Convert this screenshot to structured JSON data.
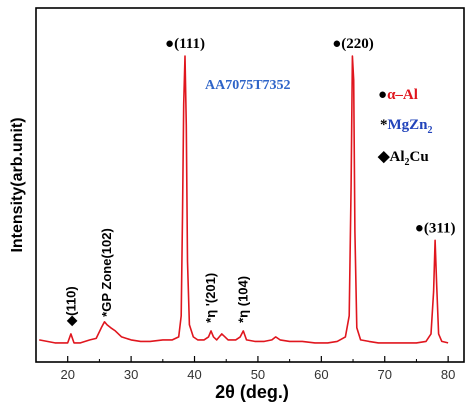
{
  "chart_data": {
    "type": "line",
    "xlabel": "2θ (deg.)",
    "ylabel": "Intensity(arb.unit)",
    "xlim": [
      15,
      82.5
    ],
    "ylim": [
      0,
      100
    ],
    "y_ticks_shown": false,
    "grid": false,
    "x_ticks": [
      20,
      30,
      40,
      50,
      60,
      70,
      80
    ],
    "x_tick_labels": [
      "20",
      "30",
      "40",
      "50",
      "60",
      "70",
      "80"
    ],
    "series": [
      {
        "color": "#e0161e",
        "x": [
          15.5,
          18,
          20.0,
          20.5,
          21.0,
          21.5,
          22,
          23.5,
          24.5,
          25.3,
          25.8,
          26.2,
          26.8,
          27.5,
          28.5,
          30,
          31.5,
          33,
          35,
          36.5,
          37.5,
          37.9,
          38.1,
          38.3,
          38.5,
          38.7,
          38.9,
          39.2,
          39.8,
          40.5,
          41.5,
          42.2,
          42.6,
          43.0,
          43.5,
          44.3,
          44.8,
          45.3,
          46.5,
          47.2,
          47.7,
          48.2,
          49.5,
          51,
          52.2,
          52.8,
          53.5,
          55,
          57,
          59,
          61,
          62.5,
          63.8,
          64.4,
          64.7,
          64.9,
          65.1,
          65.3,
          65.6,
          66.2,
          67.5,
          69,
          71,
          73,
          75,
          76.5,
          77.3,
          77.7,
          77.95,
          78.2,
          78.5,
          79.0,
          80.0
        ],
        "y": [
          4,
          3,
          3,
          6,
          3,
          3,
          3,
          4,
          4.5,
          8,
          10,
          9,
          8,
          7,
          5,
          4,
          3.5,
          3.5,
          4,
          4,
          5,
          12,
          45,
          82,
          98,
          75,
          30,
          9,
          5,
          4,
          4,
          5,
          7,
          5,
          4,
          6,
          5,
          4,
          4,
          5,
          7,
          4,
          3.5,
          3.5,
          4,
          5,
          4,
          3.5,
          3.5,
          3,
          3,
          3.5,
          5,
          12,
          55,
          98,
          90,
          40,
          8,
          4,
          3.5,
          3,
          3,
          3,
          3,
          3.5,
          6,
          20,
          37,
          22,
          6,
          3.5,
          3
        ]
      }
    ],
    "annotations": [
      {
        "text": "(110)",
        "x": 20.6,
        "marker": "◆"
      },
      {
        "text": "GP Zone(102)",
        "x": 26.2,
        "marker": "*"
      },
      {
        "text": "(111)",
        "x": 38.5,
        "marker": "●"
      },
      {
        "text": "η '(201)",
        "x": 42.6,
        "marker": "*"
      },
      {
        "text": "η (104)",
        "x": 47.7,
        "marker": "*"
      },
      {
        "text": "(220)",
        "x": 65.0,
        "marker": "●"
      },
      {
        "text": "(311)",
        "x": 77.95,
        "marker": "●"
      }
    ],
    "inline_title": "AA7075T7352",
    "legend": [
      {
        "marker": "●",
        "label": "α–Al",
        "color": "#e0161e"
      },
      {
        "marker": "*",
        "label": "MgZn",
        "subscript": "2",
        "color": "#2244bb"
      },
      {
        "marker": "◆",
        "label": "Al",
        "subscript": "2",
        "suffix": "Cu",
        "color": "#000000"
      }
    ],
    "legend_position": "right"
  }
}
